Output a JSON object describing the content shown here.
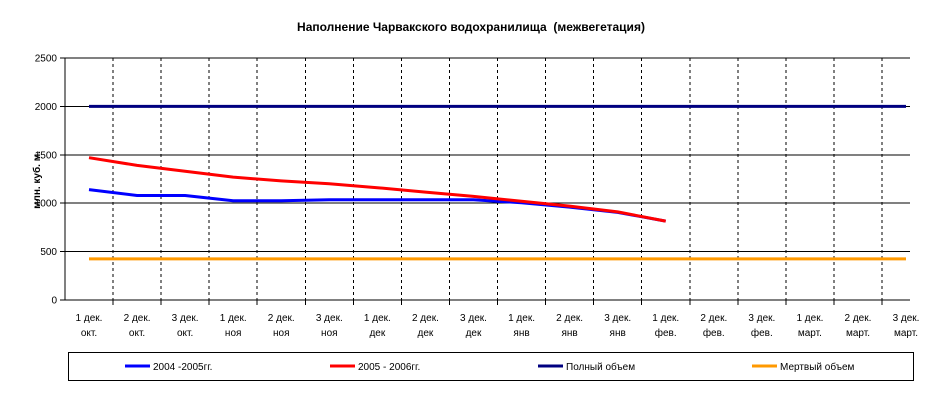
{
  "chart_data": {
    "type": "line",
    "title": "Наполнение Чарвакского водохранилища  (межвегетация)",
    "ylabel": "млн. куб. м.",
    "ylim": [
      0,
      2500
    ],
    "yticks": [
      0,
      500,
      1000,
      1500,
      2000,
      2500
    ],
    "grid": true,
    "legend": "bottom",
    "categories": [
      [
        "1 дек.",
        "окт."
      ],
      [
        "2 дек.",
        "окт."
      ],
      [
        "3 дек.",
        "окт."
      ],
      [
        "1 дек.",
        "ноя"
      ],
      [
        "2 дек.",
        "ноя"
      ],
      [
        "3 дек.",
        "ноя"
      ],
      [
        "1 дек.",
        "дек"
      ],
      [
        "2 дек.",
        "дек"
      ],
      [
        "3 дек.",
        "дек"
      ],
      [
        "1 дек.",
        "янв"
      ],
      [
        "2 дек.",
        "янв"
      ],
      [
        "3 дек.",
        "янв"
      ],
      [
        "1 дек.",
        "фев."
      ],
      [
        "2 дек.",
        "фев."
      ],
      [
        "3 дек.",
        "фев."
      ],
      [
        "1 дек.",
        "март."
      ],
      [
        "2 дек.",
        "март."
      ],
      [
        "3 дек.",
        "март."
      ]
    ],
    "series": [
      {
        "name": "2004 -2005гг.",
        "color": "#0000FF",
        "values": [
          1140,
          1080,
          1080,
          1025,
          1025,
          1035,
          1035,
          1035,
          1035,
          1005,
          960,
          905,
          815,
          null,
          null,
          null,
          null,
          null
        ]
      },
      {
        "name": "2005 - 2006гг.",
        "color": "#FF0000",
        "values": [
          1470,
          1390,
          1330,
          1270,
          1230,
          1200,
          1160,
          1115,
          1070,
          1020,
          970,
          910,
          815,
          null,
          null,
          null,
          null,
          null
        ]
      },
      {
        "name": "Полный объем",
        "color": "#000080",
        "values": [
          2000,
          2000,
          2000,
          2000,
          2000,
          2000,
          2000,
          2000,
          2000,
          2000,
          2000,
          2000,
          2000,
          2000,
          2000,
          2000,
          2000,
          2000
        ]
      },
      {
        "name": "Мертвый объем",
        "color": "#FF9900",
        "values": [
          425,
          425,
          425,
          425,
          425,
          425,
          425,
          425,
          425,
          425,
          425,
          425,
          425,
          425,
          425,
          425,
          425,
          425
        ]
      }
    ]
  }
}
